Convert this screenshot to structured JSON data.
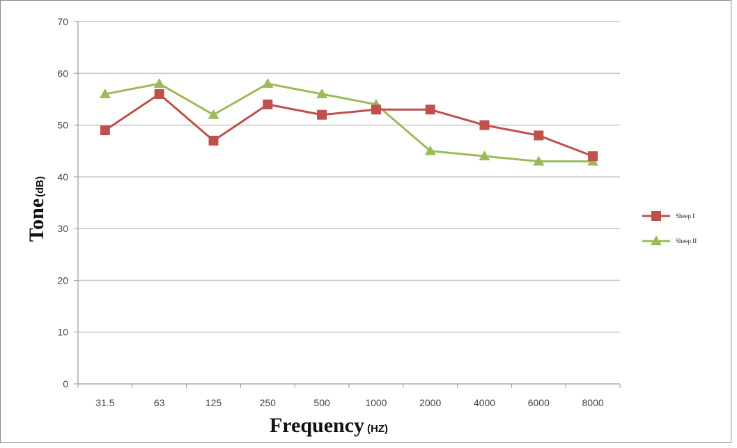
{
  "chart_data": {
    "type": "line",
    "categories": [
      "31.5",
      "63",
      "125",
      "250",
      "500",
      "1000",
      "2000",
      "4000",
      "6000",
      "8000"
    ],
    "series": [
      {
        "name": "Sheep I",
        "color": "#c0504d",
        "marker": "square",
        "values": [
          49,
          56,
          47,
          54,
          52,
          53,
          53,
          50,
          48,
          44
        ]
      },
      {
        "name": "Sheep II",
        "color": "#9bbb59",
        "marker": "triangle",
        "values": [
          56,
          58,
          52,
          58,
          56,
          54,
          45,
          44,
          43,
          43
        ]
      }
    ],
    "ylim": [
      0,
      70
    ],
    "yticks": [
      "0",
      "10",
      "20",
      "30",
      "40",
      "50",
      "60",
      "70"
    ],
    "ylabel": "Tone",
    "ylabel_unit": "(dB)",
    "xlabel": "Frequency",
    "xlabel_unit": "(HZ)",
    "grid": "horizontal",
    "legend_position": "right"
  }
}
